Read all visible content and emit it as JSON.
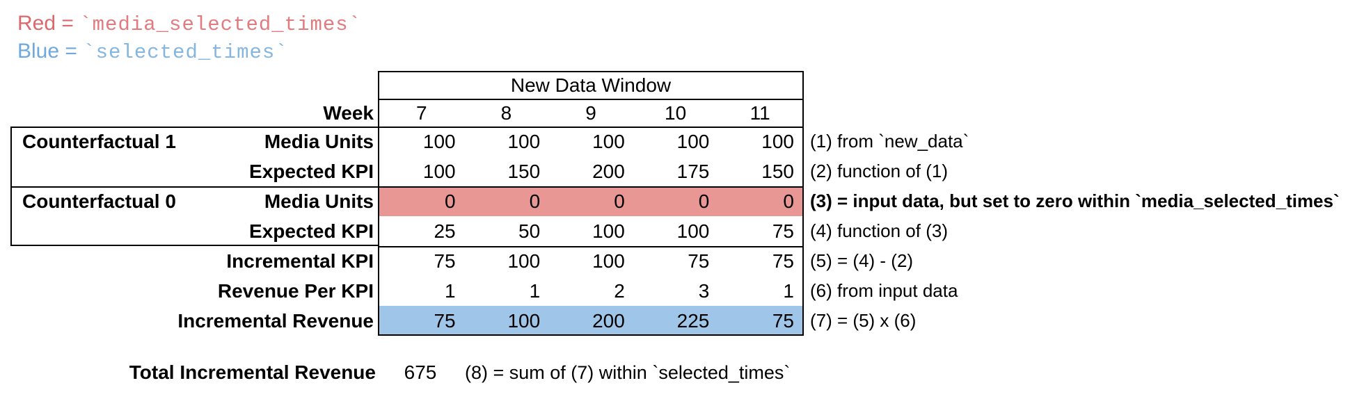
{
  "legend": {
    "red_label": "Red = ",
    "red_code": "`media_selected_times`",
    "blue_label": "Blue = ",
    "blue_code": "`selected_times`"
  },
  "colors": {
    "red_text": "#d9696d",
    "blue_text": "#6fa8dc",
    "red_row_fill": "#e99795",
    "blue_row_fill": "#9fc5e8",
    "border": "#000000"
  },
  "table": {
    "window_header": "New Data Window",
    "week_label": "Week",
    "weeks": [
      "7",
      "8",
      "9",
      "10",
      "11"
    ],
    "groups": [
      {
        "label": "Counterfactual 1"
      },
      {
        "label": "Counterfactual 0"
      }
    ],
    "rows": [
      {
        "label": "Media Units",
        "values": [
          "100",
          "100",
          "100",
          "100",
          "100"
        ],
        "annotation": "(1) from `new_data`"
      },
      {
        "label": "Expected KPI",
        "values": [
          "100",
          "150",
          "200",
          "175",
          "150"
        ],
        "annotation": "(2) function of (1)"
      },
      {
        "label": "Media Units",
        "values": [
          "0",
          "0",
          "0",
          "0",
          "0"
        ],
        "annotation": "(3) = input data, but set to zero within `media_selected_times`",
        "highlight": "red"
      },
      {
        "label": "Expected KPI",
        "values": [
          "25",
          "50",
          "100",
          "100",
          "75"
        ],
        "annotation": "(4) function of (3)"
      },
      {
        "label": "Incremental KPI",
        "values": [
          "75",
          "100",
          "100",
          "75",
          "75"
        ],
        "annotation": "(5) = (4) - (2)"
      },
      {
        "label": "Revenue Per KPI",
        "values": [
          "1",
          "1",
          "2",
          "3",
          "1"
        ],
        "annotation": "(6) from input data"
      },
      {
        "label": "Incremental Revenue",
        "values": [
          "75",
          "100",
          "200",
          "225",
          "75"
        ],
        "annotation": "(7) = (5) x (6)",
        "highlight": "blue"
      }
    ],
    "total": {
      "label": "Total Incremental Revenue",
      "value": "675",
      "annotation": "(8) = sum of (7) within `selected_times`"
    }
  }
}
